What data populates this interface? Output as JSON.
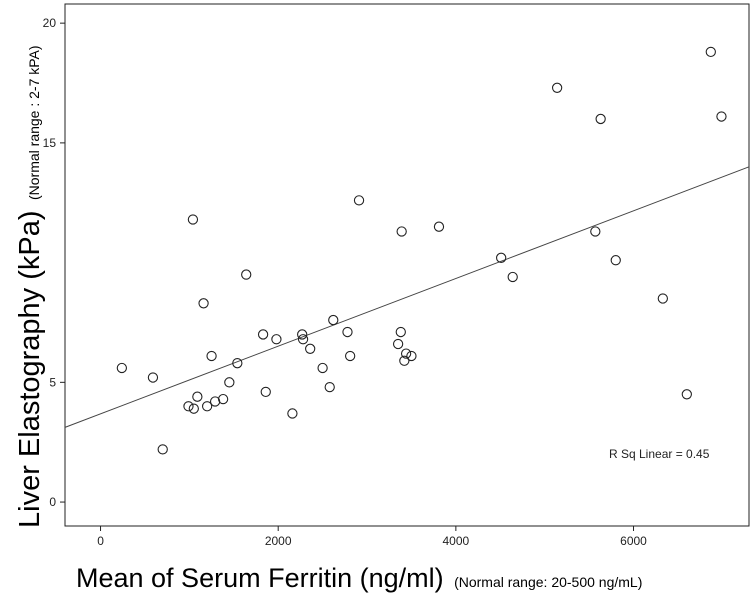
{
  "chart_data": {
    "type": "scatter",
    "xlabel": "Mean of Serum Ferritin (ng/ml)",
    "xlabel_note": "(Normal range: 20-500 ng/mL)",
    "ylabel": "Liver Elastography (kPa)",
    "ylabel_note": "(Normal range : 2-7 kPA)",
    "xlim": [
      -400,
      7300
    ],
    "ylim": [
      -1,
      20.8
    ],
    "x_ticks": [
      0,
      2000,
      4000,
      6000
    ],
    "y_ticks": [
      0,
      5,
      15,
      20
    ],
    "x_tick_labels": [
      "0",
      "2000",
      "4000",
      "6000"
    ],
    "y_tick_labels": [
      "0",
      "5",
      "15",
      "20"
    ],
    "annotation": "R Sq Linear = 0.45",
    "fit_line": {
      "x": [
        -400,
        7300
      ],
      "y": [
        3.12,
        14.0
      ]
    },
    "points": [
      {
        "x": 240,
        "y": 5.6
      },
      {
        "x": 590,
        "y": 5.2
      },
      {
        "x": 700,
        "y": 2.2
      },
      {
        "x": 990,
        "y": 4.0
      },
      {
        "x": 1040,
        "y": 11.8
      },
      {
        "x": 1050,
        "y": 3.9
      },
      {
        "x": 1090,
        "y": 4.4
      },
      {
        "x": 1160,
        "y": 8.3
      },
      {
        "x": 1200,
        "y": 4.0
      },
      {
        "x": 1250,
        "y": 6.1
      },
      {
        "x": 1290,
        "y": 4.2
      },
      {
        "x": 1380,
        "y": 4.3
      },
      {
        "x": 1450,
        "y": 5.0
      },
      {
        "x": 1540,
        "y": 5.8
      },
      {
        "x": 1640,
        "y": 9.5
      },
      {
        "x": 1830,
        "y": 7.0
      },
      {
        "x": 1860,
        "y": 4.6
      },
      {
        "x": 1980,
        "y": 6.8
      },
      {
        "x": 2160,
        "y": 3.7
      },
      {
        "x": 2270,
        "y": 7.0
      },
      {
        "x": 2280,
        "y": 6.8
      },
      {
        "x": 2360,
        "y": 6.4
      },
      {
        "x": 2500,
        "y": 5.6
      },
      {
        "x": 2580,
        "y": 4.8
      },
      {
        "x": 2620,
        "y": 7.6
      },
      {
        "x": 2780,
        "y": 7.1
      },
      {
        "x": 2810,
        "y": 6.1
      },
      {
        "x": 2910,
        "y": 12.6
      },
      {
        "x": 3350,
        "y": 6.6
      },
      {
        "x": 3380,
        "y": 7.1
      },
      {
        "x": 3390,
        "y": 11.3
      },
      {
        "x": 3420,
        "y": 5.9
      },
      {
        "x": 3440,
        "y": 6.2
      },
      {
        "x": 3500,
        "y": 6.1
      },
      {
        "x": 3810,
        "y": 11.5
      },
      {
        "x": 4510,
        "y": 10.2
      },
      {
        "x": 4640,
        "y": 9.4
      },
      {
        "x": 5140,
        "y": 17.3
      },
      {
        "x": 5570,
        "y": 11.3
      },
      {
        "x": 5630,
        "y": 16.0
      },
      {
        "x": 5800,
        "y": 10.1
      },
      {
        "x": 6330,
        "y": 8.5
      },
      {
        "x": 6600,
        "y": 4.5
      },
      {
        "x": 6870,
        "y": 18.8
      },
      {
        "x": 6990,
        "y": 16.1
      }
    ]
  }
}
